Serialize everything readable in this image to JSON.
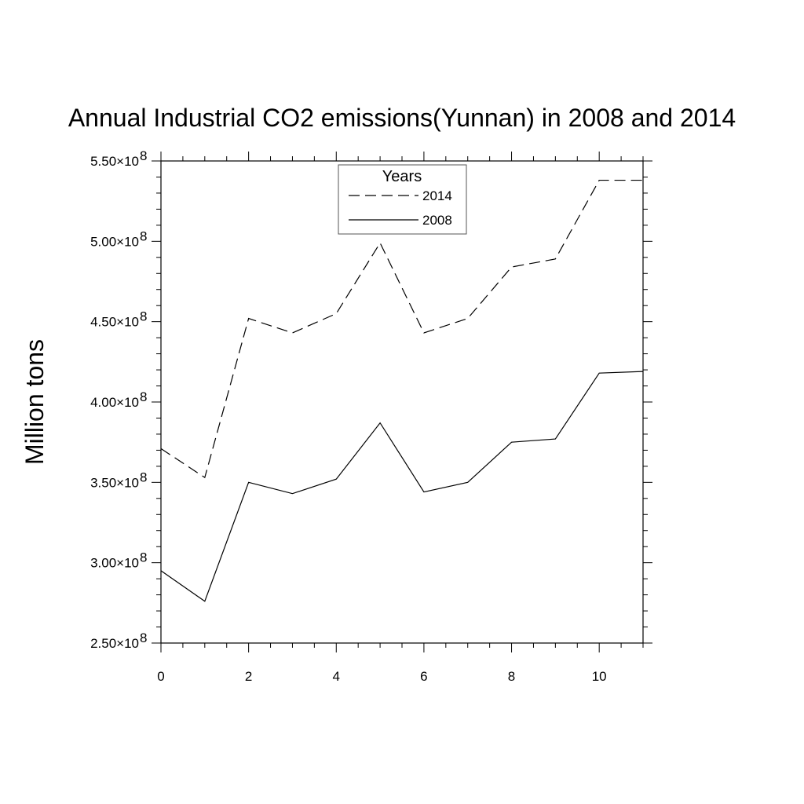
{
  "chart_data": {
    "type": "line",
    "title": "Annual Industrial CO2 emissions(Yunnan) in 2008 and 2014",
    "xlabel": "",
    "ylabel": "Million tons",
    "x": [
      0,
      1,
      2,
      3,
      4,
      5,
      6,
      7,
      8,
      9,
      10,
      11
    ],
    "xlim": [
      0,
      11
    ],
    "ylim": [
      250000000,
      550000000
    ],
    "x_ticks": [
      0,
      2,
      4,
      6,
      8,
      10
    ],
    "x_tick_labels": [
      "0",
      "2",
      "4",
      "6",
      "8",
      "10"
    ],
    "y_ticks": [
      250000000,
      300000000,
      350000000,
      400000000,
      450000000,
      500000000,
      550000000
    ],
    "y_tick_labels": [
      {
        "mantissa": "2.50",
        "exponent": "8"
      },
      {
        "mantissa": "3.00",
        "exponent": "8"
      },
      {
        "mantissa": "3.50",
        "exponent": "8"
      },
      {
        "mantissa": "4.00",
        "exponent": "8"
      },
      {
        "mantissa": "4.50",
        "exponent": "8"
      },
      {
        "mantissa": "5.00",
        "exponent": "8"
      },
      {
        "mantissa": "5.50",
        "exponent": "8"
      }
    ],
    "grid": false,
    "legend": {
      "title": "Years",
      "position": "top-center"
    },
    "series": [
      {
        "name": "2014",
        "style": "dashed",
        "color": "#000000",
        "values": [
          371000000,
          353000000,
          452000000,
          443000000,
          455000000,
          499000000,
          443000000,
          452000000,
          484000000,
          489000000,
          538000000,
          538000000
        ]
      },
      {
        "name": "2008",
        "style": "solid",
        "color": "#000000",
        "values": [
          295000000,
          276000000,
          350000000,
          343000000,
          352000000,
          387000000,
          344000000,
          350000000,
          375000000,
          377000000,
          418000000,
          419000000
        ]
      }
    ]
  }
}
